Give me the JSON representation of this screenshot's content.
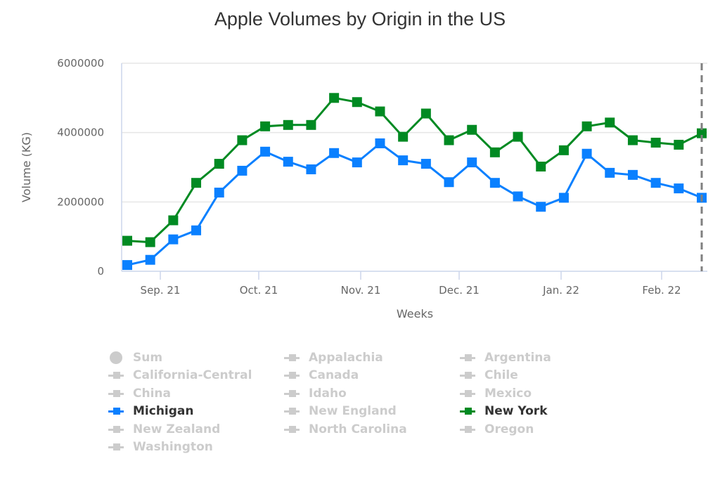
{
  "chart_data": {
    "type": "line",
    "title": "Apple Volumes by Origin in the US",
    "xlabel": "Weeks",
    "ylabel": "Volume (KG)",
    "ylim": [
      0,
      6000000
    ],
    "yticks": [
      "0",
      "2000000",
      "4000000",
      "6000000"
    ],
    "xtick_labels": [
      "Sep. 21",
      "Oct. 21",
      "Nov. 21",
      "Dec. 21",
      "Jan. 22",
      "Feb. 22"
    ],
    "grid": true,
    "legend_position": "bottom",
    "x": [
      1,
      2,
      3,
      4,
      5,
      6,
      7,
      8,
      9,
      10,
      11,
      12,
      13,
      14,
      15,
      16,
      17,
      18,
      19,
      20,
      21,
      22,
      23,
      24,
      25,
      26
    ],
    "series": [
      {
        "name": "Michigan",
        "color": "#0a80ff",
        "values": [
          180000,
          330000,
          920000,
          1180000,
          2270000,
          2900000,
          3450000,
          3160000,
          2940000,
          3410000,
          3140000,
          3690000,
          3200000,
          3100000,
          2570000,
          3140000,
          2550000,
          2160000,
          1860000,
          2120000,
          3390000,
          2840000,
          2780000,
          2550000,
          2390000,
          2120000
        ]
      },
      {
        "name": "New York",
        "color": "#008a22",
        "values": [
          880000,
          840000,
          1470000,
          2550000,
          3100000,
          3780000,
          4180000,
          4220000,
          4220000,
          5000000,
          4880000,
          4610000,
          3880000,
          4550000,
          3780000,
          4080000,
          3430000,
          3880000,
          3020000,
          3490000,
          4180000,
          4290000,
          3780000,
          3710000,
          3650000,
          3980000
        ]
      }
    ]
  },
  "legend": {
    "items": [
      {
        "label": "Sum",
        "active": false,
        "symbol": "circle"
      },
      {
        "label": "Appalachia",
        "active": false,
        "symbol": "line-square"
      },
      {
        "label": "Argentina",
        "active": false,
        "symbol": "line-square"
      },
      {
        "label": "California-Central",
        "active": false,
        "symbol": "line-square"
      },
      {
        "label": "Canada",
        "active": false,
        "symbol": "line-square"
      },
      {
        "label": "Chile",
        "active": false,
        "symbol": "line-square"
      },
      {
        "label": "China",
        "active": false,
        "symbol": "line-square"
      },
      {
        "label": "Idaho",
        "active": false,
        "symbol": "line-square"
      },
      {
        "label": "Mexico",
        "active": false,
        "symbol": "line-square"
      },
      {
        "label": "Michigan",
        "active": true,
        "symbol": "line-square",
        "color": "#0a80ff"
      },
      {
        "label": "New England",
        "active": false,
        "symbol": "line-square"
      },
      {
        "label": "New York",
        "active": true,
        "symbol": "line-square",
        "color": "#008a22"
      },
      {
        "label": "New Zealand",
        "active": false,
        "symbol": "line-square"
      },
      {
        "label": "North Carolina",
        "active": false,
        "symbol": "line-square"
      },
      {
        "label": "Oregon",
        "active": false,
        "symbol": "line-square"
      },
      {
        "label": "Washington",
        "active": false,
        "symbol": "line-square"
      }
    ]
  },
  "colors": {
    "inactive": "#cccccc",
    "active_text": "#333333",
    "gridline": "#e6e6e6",
    "axis": "#ccd6eb",
    "plotline": "#808080"
  }
}
